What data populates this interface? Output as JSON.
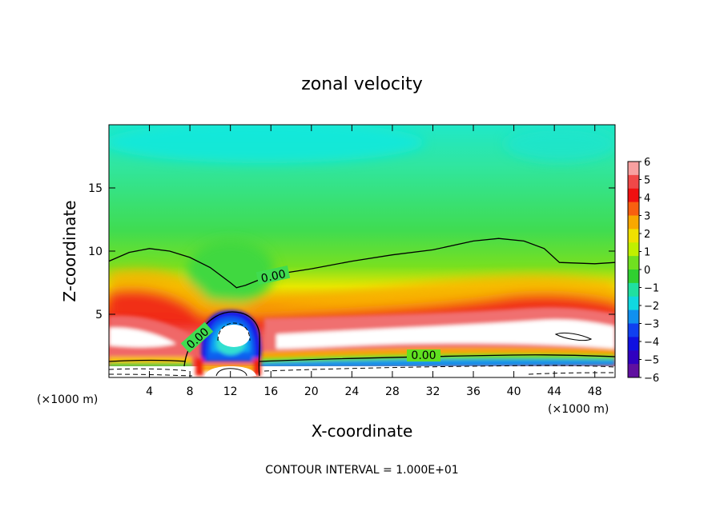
{
  "chart_data": {
    "type": "heatmap",
    "title": "zonal velocity",
    "xlabel": "X-coordinate",
    "ylabel": "Z-coordinate",
    "x_unit": "(×1000 m)",
    "y_unit": "(×1000 m)",
    "xlim": [
      0,
      50
    ],
    "ylim": [
      0,
      20
    ],
    "x_ticks": [
      4,
      8,
      12,
      16,
      20,
      24,
      28,
      32,
      36,
      40,
      44,
      48
    ],
    "y_ticks": [
      5,
      10,
      15
    ],
    "colorbar": {
      "ticks": [
        6,
        5,
        4,
        3,
        2,
        1,
        0,
        -1,
        -2,
        -3,
        -4,
        -5,
        -6
      ],
      "colors": [
        "#f7a0a0",
        "#f04848",
        "#f01010",
        "#f86010",
        "#f8a800",
        "#f0e000",
        "#c0f000",
        "#70e020",
        "#30d030",
        "#20e0a0",
        "#10d8e0",
        "#1090f0",
        "#1040f0",
        "#1010e0",
        "#3000c0",
        "#6010a0"
      ]
    },
    "contour_labels": [
      "0.00",
      "0.00",
      "0.00"
    ],
    "contour_zero_line": {
      "x": [
        0,
        2,
        4,
        6,
        8,
        10,
        12,
        12.6,
        13.5,
        16,
        20,
        24,
        28,
        32,
        36,
        38.5,
        41,
        43,
        44.5,
        48,
        50
      ],
      "y": [
        9.2,
        9.9,
        10.2,
        10.0,
        9.5,
        8.7,
        7.5,
        7.1,
        7.3,
        8.1,
        8.6,
        9.2,
        9.7,
        10.1,
        10.8,
        11.0,
        10.8,
        10.2,
        9.1,
        9.0,
        9.1
      ]
    },
    "footer": "CONTOUR INTERVAL = 1.000E+01"
  }
}
